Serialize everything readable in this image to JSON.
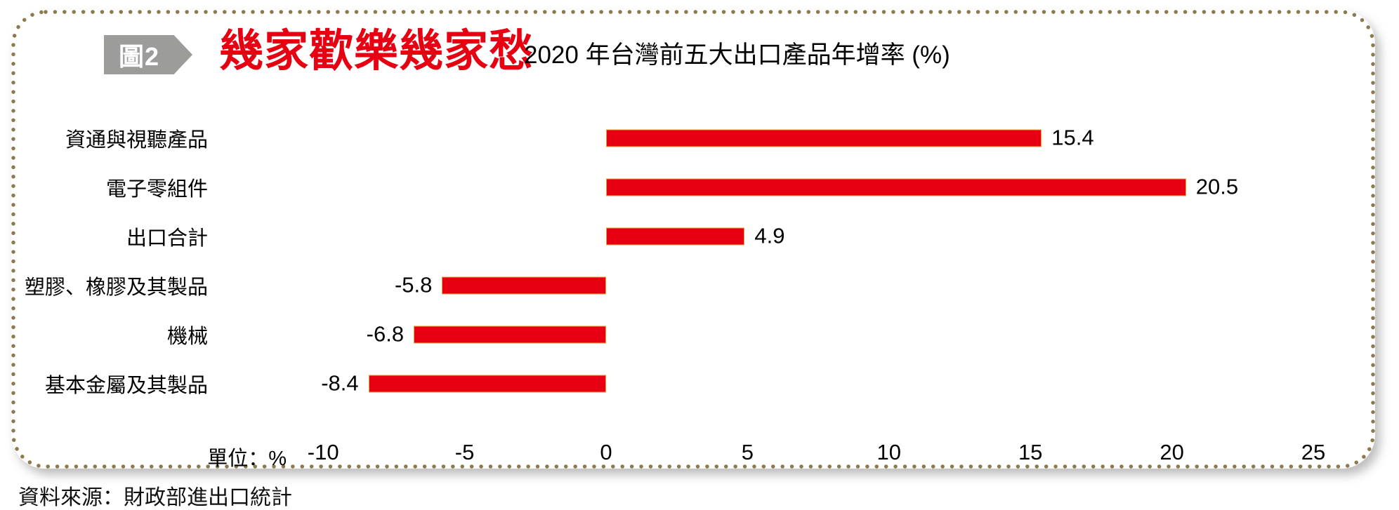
{
  "header": {
    "figure_badge": "圖2",
    "title": "幾家歡樂幾家愁",
    "subtitle": "2020 年台灣前五大出口產品年增率 (%)"
  },
  "axis": {
    "unit_label": "單位：%"
  },
  "source": "資料來源：財政部進出口統計",
  "colors": {
    "bar": "#e60012",
    "bar_edge": "#ee9f3a",
    "title_red": "#e60012",
    "badge_gray": "#9c9c9b",
    "border_dots": "#8a7a4e",
    "text": "#000000"
  },
  "chart_data": {
    "type": "bar",
    "orientation": "horizontal",
    "title": "幾家歡樂幾家愁",
    "subtitle": "2020 年台灣前五大出口產品年增率 (%)",
    "xlabel": "單位：%",
    "categories": [
      "資通與視聽產品",
      "電子零組件",
      "出口合計",
      "塑膠、橡膠及其製品",
      "機械",
      "基本金屬及其製品"
    ],
    "values": [
      15.4,
      20.5,
      4.9,
      -5.8,
      -6.8,
      -8.4
    ],
    "xlim": [
      -10,
      25
    ],
    "xticks": [
      -10,
      -5,
      0,
      5,
      10,
      15,
      20,
      25
    ],
    "grid": false,
    "legend": false,
    "value_labels": "end-of-bar, one decimal"
  }
}
